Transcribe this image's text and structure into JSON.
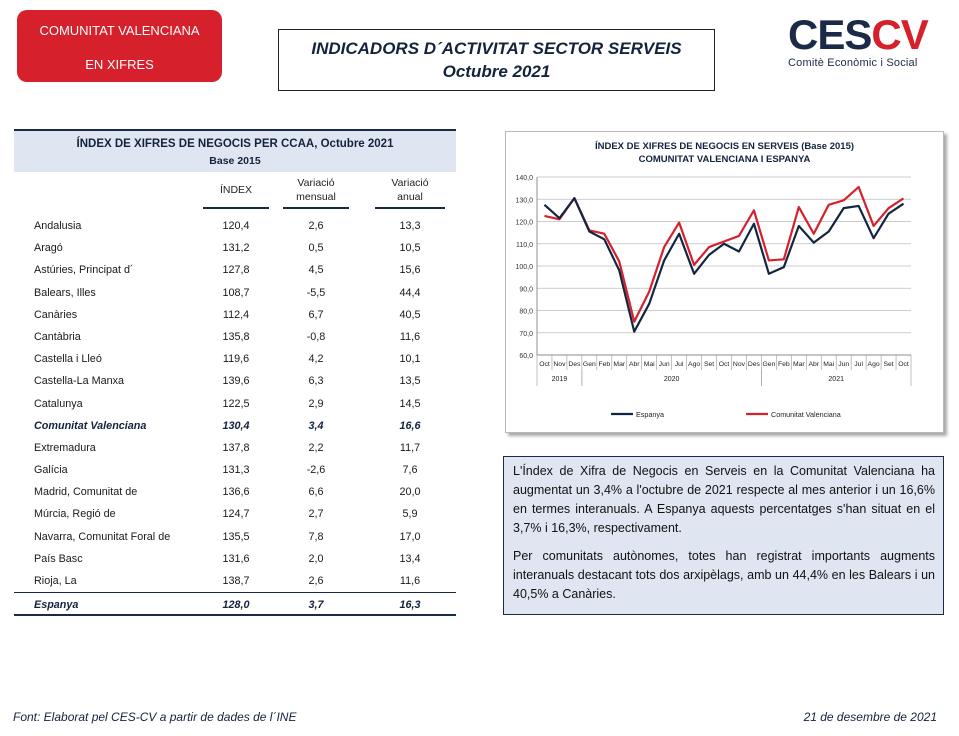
{
  "header": {
    "badge_line1": "COMUNITAT VALENCIANA",
    "badge_line2": "EN XIFRES",
    "title_line1": "INDICADORS D´ACTIVITAT SECTOR SERVEIS",
    "title_line2": "Octubre 2021",
    "logo_text_dark": "CES",
    "logo_text_red": "CV",
    "logo_subtitle": "Comitè Econòmic i Social"
  },
  "table": {
    "title": "ÍNDEX DE XIFRES DE NEGOCIS PER CCAA, Octubre 2021",
    "subtitle": "Base 2015",
    "col_index": "ÍNDEX",
    "col_mensual_1": "Variació",
    "col_mensual_2": "mensual",
    "col_anual_1": "Variació",
    "col_anual_2": "anual",
    "rows": [
      {
        "name": "Andalusia",
        "index": "120,4",
        "mensual": "2,6",
        "anual": "13,3"
      },
      {
        "name": "Aragó",
        "index": "131,2",
        "mensual": "0,5",
        "anual": "10,5"
      },
      {
        "name": "Astúries, Principat d´",
        "index": "127,8",
        "mensual": "4,5",
        "anual": "15,6"
      },
      {
        "name": "Balears, Illes",
        "index": "108,7",
        "mensual": "-5,5",
        "anual": "44,4"
      },
      {
        "name": "Canàries",
        "index": "112,4",
        "mensual": "6,7",
        "anual": "40,5"
      },
      {
        "name": "Cantàbria",
        "index": "135,8",
        "mensual": "-0,8",
        "anual": "11,6"
      },
      {
        "name": "Castella i Lleó",
        "index": "119,6",
        "mensual": "4,2",
        "anual": "10,1"
      },
      {
        "name": "Castella-La Manxa",
        "index": "139,6",
        "mensual": "6,3",
        "anual": "13,5"
      },
      {
        "name": "Catalunya",
        "index": "122,5",
        "mensual": "2,9",
        "anual": "14,5"
      },
      {
        "name": "Comunitat Valenciana",
        "index": "130,4",
        "mensual": "3,4",
        "anual": "16,6"
      },
      {
        "name": "Extremadura",
        "index": "137,8",
        "mensual": "2,2",
        "anual": "11,7"
      },
      {
        "name": "Galícia",
        "index": "131,3",
        "mensual": "-2,6",
        "anual": "7,6"
      },
      {
        "name": "Madrid, Comunitat de",
        "index": "136,6",
        "mensual": "6,6",
        "anual": "20,0"
      },
      {
        "name": "Múrcia, Regió de",
        "index": "124,7",
        "mensual": "2,7",
        "anual": "5,9"
      },
      {
        "name": "Navarra, Comunitat Foral de",
        "index": "135,5",
        "mensual": "7,8",
        "anual": "17,0"
      },
      {
        "name": "País Basc",
        "index": "131,6",
        "mensual": "2,0",
        "anual": "13,4"
      },
      {
        "name": "Rioja, La",
        "index": "138,7",
        "mensual": "2,6",
        "anual": "11,6"
      },
      {
        "name": "Espanya",
        "index": "128,0",
        "mensual": "3,7",
        "anual": "16,3"
      }
    ]
  },
  "chart_data": {
    "type": "line",
    "title": "ÍNDEX DE XIFRES DE NEGOCIS EN SERVEIS (Base 2015)",
    "subtitle": "COMUNITAT VALENCIANA I ESPANYA",
    "categories": [
      "Oct",
      "Nov",
      "Des",
      "Gen",
      "Feb",
      "Mar",
      "Abr",
      "Mai",
      "Jun",
      "Jul",
      "Ago",
      "Set",
      "Oct",
      "Nov",
      "Des",
      "Gen",
      "Feb",
      "Mar",
      "Abr",
      "Mai",
      "Jun",
      "Jul",
      "Ago",
      "Set",
      "Oct"
    ],
    "year_groups": [
      {
        "label": "2019",
        "start": 0,
        "end": 2
      },
      {
        "label": "2020",
        "start": 3,
        "end": 14
      },
      {
        "label": "2021",
        "start": 15,
        "end": 24
      }
    ],
    "yticks": [
      "60,0",
      "70,0",
      "80,0",
      "90,0",
      "100,0",
      "110,0",
      "120,0",
      "130,0",
      "140,0"
    ],
    "ylim": [
      60,
      140
    ],
    "series": [
      {
        "name": "Espanya",
        "color": "#132540",
        "values": [
          127.5,
          121.5,
          130.5,
          115.5,
          112.0,
          98.0,
          70.5,
          83.0,
          102.5,
          114.5,
          96.5,
          105.0,
          110.0,
          106.5,
          119.0,
          96.5,
          99.5,
          118.0,
          110.5,
          115.5,
          126.0,
          127.0,
          112.5,
          123.5,
          128.0
        ]
      },
      {
        "name": "Comunitat Valenciana",
        "color": "#d6202b",
        "values": [
          122.5,
          121.0,
          130.5,
          116.0,
          114.5,
          102.0,
          75.0,
          88.5,
          108.5,
          119.5,
          100.5,
          108.5,
          111.0,
          113.5,
          125.0,
          102.5,
          103.0,
          126.5,
          114.5,
          127.5,
          129.5,
          135.5,
          118.0,
          126.0,
          130.4
        ]
      }
    ]
  },
  "summary": {
    "p1": "L'Índex de Xifra de Negocis en Serveis en la Comunitat Valenciana ha augmentat un 3,4% a l'octubre de 2021 respecte al mes anterior i un 16,6% en termes interanuals. A Espanya aquests percentatges s'han situat en el 3,7% i 16,3%, respectivament.",
    "p2": "Per comunitats autònomes, totes han registrat importants augments interanuals destacant tots dos arxipèlags, amb un 44,4% en les Balears i un 40,5% a Canàries."
  },
  "footer": {
    "source": "Font: Elaborat pel CES-CV a partir de dades de l´INE",
    "date": "21 de desembre de 2021"
  }
}
